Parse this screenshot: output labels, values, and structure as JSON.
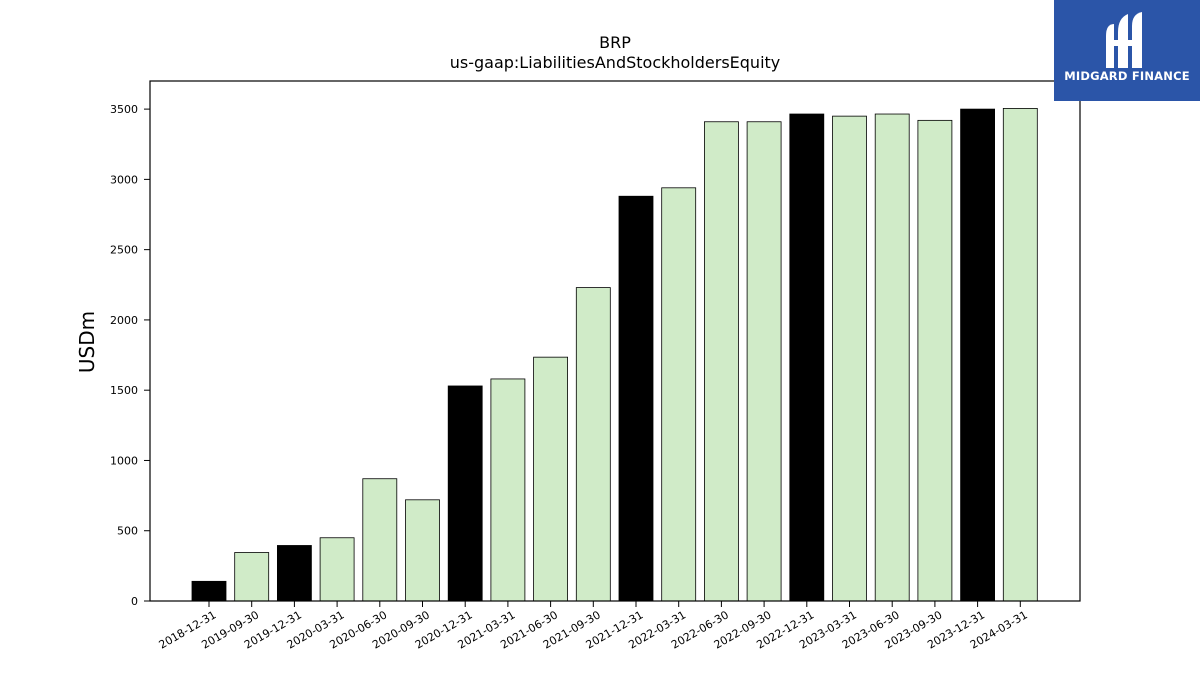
{
  "logo": {
    "text": "MIDGARD FINANCE",
    "icon": "midgard-m-logo-icon",
    "background": "#2b55a8"
  },
  "chart_data": {
    "type": "bar",
    "title": "BRP",
    "subtitle": "us-gaap:LiabilitiesAndStockholdersEquity",
    "xlabel": "",
    "ylabel": "USDm",
    "ylim": [
      0,
      3700
    ],
    "yticks": [
      0,
      500,
      1000,
      1500,
      2000,
      2500,
      3000,
      3500
    ],
    "grid": false,
    "categories": [
      "2018-12-31",
      "2019-09-30",
      "2019-12-31",
      "2020-03-31",
      "2020-06-30",
      "2020-09-30",
      "2020-12-31",
      "2021-03-31",
      "2021-06-30",
      "2021-09-30",
      "2021-12-31",
      "2022-03-31",
      "2022-06-30",
      "2022-09-30",
      "2022-12-31",
      "2023-03-31",
      "2023-06-30",
      "2023-09-30",
      "2023-12-31",
      "2024-03-31"
    ],
    "values": [
      140,
      345,
      395,
      450,
      870,
      720,
      1530,
      1580,
      1735,
      2230,
      2880,
      2940,
      3410,
      3410,
      3465,
      3450,
      3465,
      3420,
      3500,
      3505
    ],
    "colors": [
      "#000000",
      "#d0ebc8",
      "#000000",
      "#d0ebc8",
      "#d0ebc8",
      "#d0ebc8",
      "#000000",
      "#d0ebc8",
      "#d0ebc8",
      "#d0ebc8",
      "#000000",
      "#d0ebc8",
      "#d0ebc8",
      "#d0ebc8",
      "#000000",
      "#d0ebc8",
      "#d0ebc8",
      "#d0ebc8",
      "#000000",
      "#d0ebc8"
    ]
  }
}
